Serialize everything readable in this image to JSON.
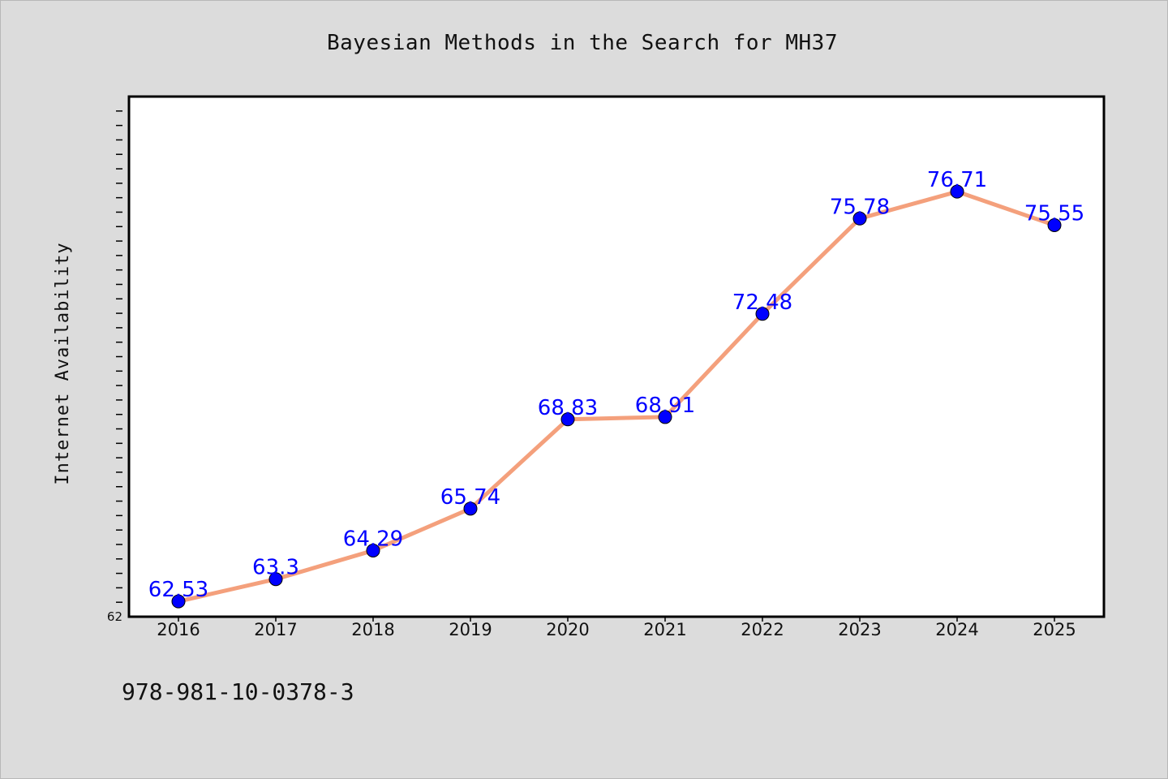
{
  "chart_data": {
    "type": "line",
    "title": "Bayesian Methods in the Search for MH37",
    "xlabel": "",
    "ylabel": "Internet Availability",
    "categories": [
      "2016",
      "2017",
      "2018",
      "2019",
      "2020",
      "2021",
      "2022",
      "2023",
      "2024",
      "2025"
    ],
    "series": [
      {
        "values": [
          62.53,
          63.3,
          64.29,
          65.74,
          68.83,
          68.91,
          72.48,
          75.78,
          76.71,
          75.55
        ],
        "line_color": "#f4a07c",
        "marker_color": "#0000ff",
        "label_color": "#0000ff"
      }
    ],
    "ylim": [
      62,
      80
    ],
    "yticks_labeled": [
      "62"
    ],
    "data_labels": true,
    "grid": false,
    "legend": "none"
  },
  "footer": {
    "isbn": "978-981-10-0378-3"
  }
}
